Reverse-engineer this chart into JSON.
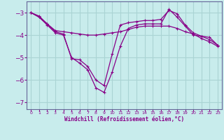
{
  "xlabel": "Windchill (Refroidissement éolien,°C)",
  "bg_color": "#c8ecec",
  "grid_color": "#aad4d4",
  "line_color": "#880088",
  "spine_color": "#666699",
  "xlim": [
    -0.5,
    23.5
  ],
  "ylim": [
    -7.3,
    -2.5
  ],
  "yticks": [
    -7,
    -6,
    -5,
    -4,
    -3
  ],
  "xticks": [
    0,
    1,
    2,
    3,
    4,
    5,
    6,
    7,
    8,
    9,
    10,
    11,
    12,
    13,
    14,
    15,
    16,
    17,
    18,
    19,
    20,
    21,
    22,
    23
  ],
  "line1_x": [
    0,
    1,
    2,
    3,
    4,
    5,
    6,
    7,
    8,
    9,
    10,
    11,
    12,
    13,
    14,
    15,
    16,
    17,
    18,
    19,
    20,
    21,
    22,
    23
  ],
  "line1_y": [
    -3.0,
    -3.15,
    -3.5,
    -3.8,
    -3.85,
    -3.9,
    -3.95,
    -4.0,
    -4.0,
    -3.95,
    -3.9,
    -3.85,
    -3.75,
    -3.65,
    -3.6,
    -3.6,
    -3.6,
    -3.6,
    -3.7,
    -3.85,
    -3.95,
    -4.15,
    -4.3,
    -4.5
  ],
  "line2_x": [
    0,
    1,
    2,
    3,
    4,
    5,
    6,
    7,
    8,
    9,
    10,
    11,
    12,
    13,
    14,
    15,
    16,
    17,
    18,
    19,
    20,
    21,
    22,
    23
  ],
  "line2_y": [
    -3.0,
    -3.2,
    -3.5,
    -3.85,
    -3.95,
    -5.05,
    -5.1,
    -5.4,
    -6.0,
    -6.25,
    -4.85,
    -3.55,
    -3.45,
    -3.4,
    -3.35,
    -3.35,
    -3.3,
    -2.9,
    -3.05,
    -3.55,
    -3.9,
    -4.05,
    -4.1,
    -4.45
  ],
  "line3_x": [
    0,
    1,
    2,
    3,
    4,
    5,
    6,
    7,
    8,
    9,
    10,
    11,
    12,
    13,
    14,
    15,
    16,
    17,
    18,
    19,
    20,
    21,
    22,
    23
  ],
  "line3_y": [
    -3.0,
    -3.2,
    -3.55,
    -3.9,
    -4.0,
    -5.0,
    -5.25,
    -5.55,
    -6.35,
    -6.55,
    -5.65,
    -4.5,
    -3.7,
    -3.55,
    -3.5,
    -3.5,
    -3.5,
    -2.85,
    -3.2,
    -3.6,
    -4.0,
    -4.05,
    -4.2,
    -4.45
  ]
}
